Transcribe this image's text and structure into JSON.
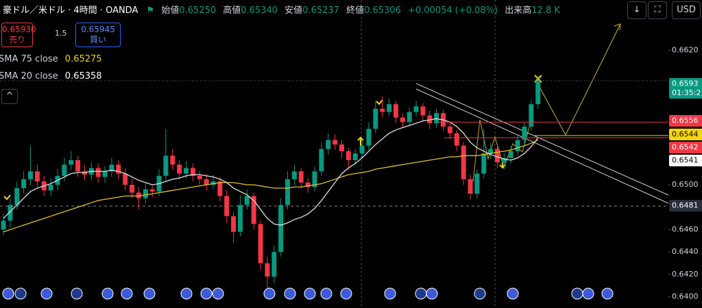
{
  "header": {
    "symbol": "豪ドル／米ドル · 4時間 · OANDA",
    "open_label": "始値",
    "open": "0.65250",
    "high_label": "高値",
    "high": "0.65340",
    "low_label": "安値",
    "low": "0.65237",
    "close_label": "終値",
    "close": "0.65306",
    "change": "+0.00054 (+0.08%)",
    "volume_label": "出来高",
    "volume": "12.8 K"
  },
  "trade": {
    "sell_price": "0.65930",
    "sell_label": "売り",
    "spread": "1.5",
    "buy_price": "0.65945",
    "buy_label": "買い"
  },
  "currency": "USD",
  "chart_data": {
    "type": "candlestick",
    "open": [
      0.646,
      0.6468,
      0.6482,
      0.6497,
      0.6505,
      0.6512,
      0.6503,
      0.6495,
      0.65,
      0.6508,
      0.6518,
      0.6522,
      0.6512,
      0.6509,
      0.6515,
      0.6507,
      0.6512,
      0.6518,
      0.651,
      0.65,
      0.6493,
      0.6488,
      0.6496,
      0.6494,
      0.6508,
      0.6526,
      0.6518,
      0.651,
      0.6515,
      0.6508,
      0.6505,
      0.65,
      0.6503,
      0.649,
      0.6472,
      0.6458,
      0.6482,
      0.649,
      0.6465,
      0.643,
      0.6418,
      0.644,
      0.6482,
      0.6505,
      0.6512,
      0.6502,
      0.6498,
      0.6512,
      0.6532,
      0.654,
      0.6536,
      0.653,
      0.6522,
      0.6528,
      0.6535,
      0.655,
      0.6568,
      0.6565,
      0.6572,
      0.656,
      0.6556,
      0.6565,
      0.657,
      0.6562,
      0.6555,
      0.6564,
      0.6552,
      0.6546,
      0.6535,
      0.6505,
      0.6492,
      0.651,
      0.6528,
      0.6532,
      0.652,
      0.6524,
      0.653,
      0.654,
      0.6552,
      0.6572
    ],
    "high": [
      0.6474,
      0.6488,
      0.6503,
      0.6512,
      0.6535,
      0.6518,
      0.6508,
      0.6506,
      0.6514,
      0.6524,
      0.653,
      0.6526,
      0.6518,
      0.652,
      0.6519,
      0.6517,
      0.6524,
      0.6522,
      0.6515,
      0.6505,
      0.6498,
      0.6502,
      0.65,
      0.6514,
      0.655,
      0.6532,
      0.6522,
      0.6521,
      0.6519,
      0.6512,
      0.651,
      0.6509,
      0.6507,
      0.6495,
      0.6476,
      0.649,
      0.6496,
      0.6493,
      0.6468,
      0.6436,
      0.6446,
      0.6488,
      0.6512,
      0.6518,
      0.6515,
      0.6506,
      0.6516,
      0.6538,
      0.6546,
      0.6545,
      0.654,
      0.6533,
      0.6532,
      0.654,
      0.6556,
      0.6575,
      0.6579,
      0.6577,
      0.6575,
      0.6564,
      0.6569,
      0.6575,
      0.6573,
      0.6566,
      0.6568,
      0.6567,
      0.6556,
      0.6549,
      0.6538,
      0.6509,
      0.6514,
      0.655,
      0.6537,
      0.6535,
      0.6528,
      0.6534,
      0.6544,
      0.6556,
      0.6576,
      0.6597
    ],
    "low": [
      0.6455,
      0.6462,
      0.6478,
      0.6492,
      0.65,
      0.6498,
      0.649,
      0.649,
      0.6495,
      0.6503,
      0.6513,
      0.6507,
      0.6504,
      0.6504,
      0.6502,
      0.6502,
      0.6507,
      0.6505,
      0.6495,
      0.6488,
      0.6478,
      0.6483,
      0.6489,
      0.649,
      0.6503,
      0.6513,
      0.6505,
      0.6506,
      0.6503,
      0.65,
      0.6495,
      0.6496,
      0.6485,
      0.6466,
      0.6448,
      0.6454,
      0.6478,
      0.646,
      0.6424,
      0.6398,
      0.6412,
      0.6436,
      0.6478,
      0.65,
      0.6497,
      0.6493,
      0.6494,
      0.6508,
      0.6527,
      0.6531,
      0.6524,
      0.6514,
      0.6518,
      0.6524,
      0.6531,
      0.6546,
      0.656,
      0.6561,
      0.6555,
      0.6551,
      0.6552,
      0.6561,
      0.6557,
      0.655,
      0.6551,
      0.6548,
      0.6541,
      0.653,
      0.65,
      0.6487,
      0.6488,
      0.6506,
      0.6523,
      0.6515,
      0.6514,
      0.6519,
      0.6526,
      0.6536,
      0.6548,
      0.6568
    ],
    "close": [
      0.6468,
      0.6482,
      0.6497,
      0.6505,
      0.6512,
      0.6503,
      0.6495,
      0.65,
      0.6508,
      0.6518,
      0.6522,
      0.6512,
      0.6509,
      0.6515,
      0.6507,
      0.6512,
      0.6518,
      0.651,
      0.65,
      0.6493,
      0.6488,
      0.6496,
      0.6494,
      0.6508,
      0.6526,
      0.6518,
      0.651,
      0.6515,
      0.6508,
      0.6505,
      0.65,
      0.6503,
      0.649,
      0.6472,
      0.6458,
      0.6482,
      0.649,
      0.6465,
      0.643,
      0.6418,
      0.644,
      0.6482,
      0.6505,
      0.6512,
      0.6502,
      0.6498,
      0.6512,
      0.6532,
      0.654,
      0.6536,
      0.653,
      0.6522,
      0.6528,
      0.6535,
      0.655,
      0.6568,
      0.6565,
      0.6572,
      0.656,
      0.6556,
      0.6565,
      0.657,
      0.6562,
      0.6555,
      0.6564,
      0.6552,
      0.6546,
      0.6535,
      0.6505,
      0.6492,
      0.651,
      0.6528,
      0.6532,
      0.652,
      0.6524,
      0.653,
      0.654,
      0.6552,
      0.6572,
      0.6593
    ],
    "up_color": "#089981",
    "down_color": "#f23645",
    "ylim": [
      0.639,
      0.6665
    ],
    "yticks": [
      {
        "value": 0.662,
        "label": "0.6620"
      },
      {
        "value": 0.65,
        "label": "0.6500"
      },
      {
        "value": 0.646,
        "label": "0.6460"
      },
      {
        "value": 0.644,
        "label": "0.6440"
      },
      {
        "value": 0.642,
        "label": "0.6420"
      },
      {
        "value": 0.64,
        "label": "0.6400"
      }
    ],
    "indicators": [
      {
        "name": "SMA 75 close",
        "value_label": "0.65275",
        "color": "#e6c229",
        "values": [
          0.6458,
          0.646,
          0.6462,
          0.6464,
          0.6466,
          0.6468,
          0.647,
          0.6472,
          0.6474,
          0.6476,
          0.6478,
          0.648,
          0.6482,
          0.6484,
          0.6486,
          0.6487,
          0.6488,
          0.6489,
          0.649,
          0.649,
          0.649,
          0.6491,
          0.6492,
          0.6493,
          0.6494,
          0.6495,
          0.6496,
          0.6497,
          0.6498,
          0.6499,
          0.65,
          0.6501,
          0.6502,
          0.6502,
          0.6502,
          0.6501,
          0.65,
          0.65,
          0.6499,
          0.6498,
          0.6497,
          0.6497,
          0.6497,
          0.6498,
          0.6498,
          0.6499,
          0.65,
          0.6501,
          0.6503,
          0.6505,
          0.6507,
          0.6509,
          0.651,
          0.6511,
          0.6512,
          0.6514,
          0.6515,
          0.6516,
          0.6517,
          0.6518,
          0.6519,
          0.652,
          0.6521,
          0.6522,
          0.6523,
          0.6524,
          0.6525,
          0.6525,
          0.6526,
          0.6526,
          0.6526,
          0.6527,
          0.6528,
          0.6529,
          0.653,
          0.6531,
          0.6533,
          0.6535,
          0.6537,
          0.654
        ]
      },
      {
        "name": "SMA 20 close",
        "value_label": "0.65358",
        "color": "#e0e0e0",
        "values": [
          0.647,
          0.6476,
          0.6482,
          0.6488,
          0.6494,
          0.6497,
          0.6499,
          0.6501,
          0.6504,
          0.6507,
          0.651,
          0.6511,
          0.6511,
          0.6512,
          0.6512,
          0.6512,
          0.6513,
          0.6512,
          0.651,
          0.6507,
          0.6504,
          0.6502,
          0.65,
          0.6501,
          0.6503,
          0.6505,
          0.6506,
          0.6508,
          0.6509,
          0.6509,
          0.6508,
          0.6507,
          0.6505,
          0.6502,
          0.6497,
          0.6494,
          0.6491,
          0.6486,
          0.6478,
          0.647,
          0.6465,
          0.6464,
          0.6466,
          0.6469,
          0.6471,
          0.6474,
          0.6479,
          0.6486,
          0.6494,
          0.6502,
          0.651,
          0.6515,
          0.6519,
          0.6524,
          0.653,
          0.6536,
          0.6541,
          0.6546,
          0.6549,
          0.6551,
          0.6553,
          0.6555,
          0.6557,
          0.6558,
          0.6559,
          0.6558,
          0.6556,
          0.6552,
          0.6546,
          0.6538,
          0.6533,
          0.653,
          0.6527,
          0.6525,
          0.6523,
          0.6522,
          0.6524,
          0.6528,
          0.6534,
          0.6542
        ]
      }
    ],
    "price_labels": [
      0.6593,
      0.6556,
      0.6544,
      0.6542,
      0.6541,
      0.6481
    ],
    "price_label_colors": [
      "#089981",
      "#f23645",
      "#f5d50b",
      "#f23645",
      "#ffffff",
      "#2a2e39"
    ],
    "countdown": "01:35:2"
  }
}
